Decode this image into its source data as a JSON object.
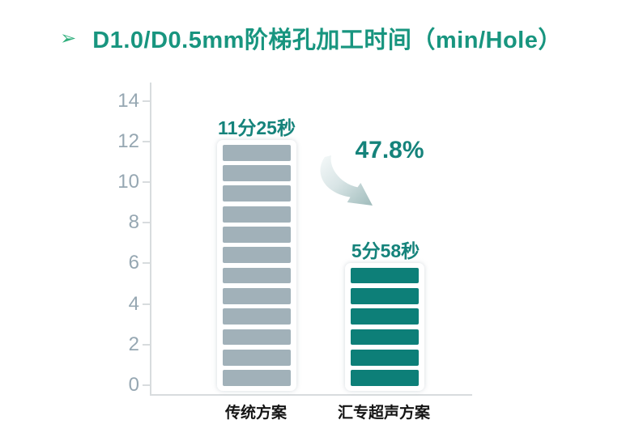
{
  "title": {
    "bullet_symbol": "➢",
    "text": "D1.0/D0.5mm阶梯孔加工时间（min/Hole）"
  },
  "colors": {
    "title_teal": "#18957F",
    "label_teal": "#15837B",
    "bar_gray": "#A1B1B9",
    "bar_teal": "#0D7F78",
    "axis_gray": "#D8DCDE",
    "tick_label_gray": "#96A7B2",
    "x_label_black": "#141414",
    "bullet_green": "#2FAF7C",
    "arrow_gradient_light": "#F5F9F9",
    "arrow_gradient_mid": "#D9E5E6",
    "arrow_gradient_dark": "#9FBBBB"
  },
  "chart_data": {
    "type": "bar",
    "title": "D1.0/D0.5mm阶梯孔加工时间（min/Hole）",
    "unit": "min/Hole",
    "categories": [
      "传统方案",
      "汇专超声方案"
    ],
    "values_min": [
      11.4167,
      5.9667
    ],
    "value_labels": [
      "11分25秒",
      "5分58秒"
    ],
    "bar_segments": [
      12,
      6
    ],
    "bar_color_keys": [
      "bar_gray",
      "bar_teal"
    ],
    "reduction_annotation": "47.8%",
    "xlabel": "",
    "ylabel": "",
    "ylim": [
      0,
      14
    ],
    "yticks": [
      0,
      2,
      4,
      6,
      8,
      10,
      12,
      14
    ],
    "grid": false,
    "legend": false
  }
}
